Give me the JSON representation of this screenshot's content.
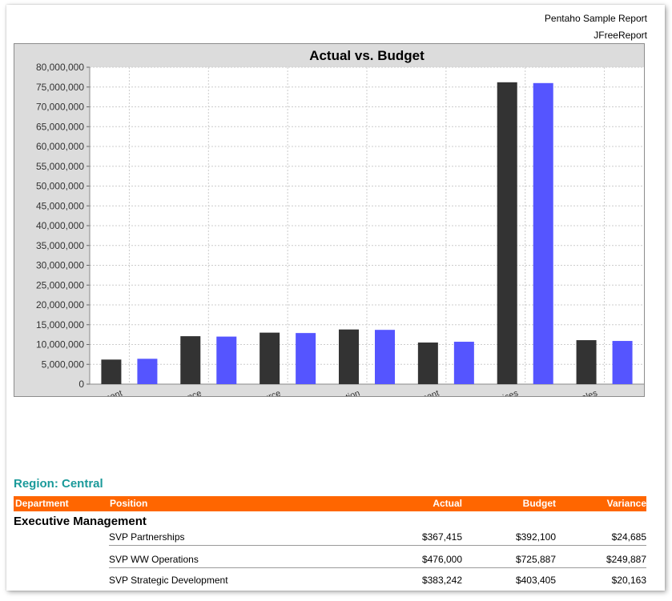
{
  "report": {
    "header_line1": "Pentaho Sample Report",
    "header_line2": "JFreeReport"
  },
  "chart_data": {
    "type": "bar",
    "title": "Actual vs. Budget",
    "xlabel": "",
    "ylabel": "",
    "ylim": [
      0,
      80000000
    ],
    "y_tick_step": 5000000,
    "y_tick_labels": [
      "0",
      "5,000,000",
      "10,000,000",
      "15,000,000",
      "20,000,000",
      "25,000,000",
      "30,000,000",
      "35,000,000",
      "40,000,000",
      "45,000,000",
      "50,000,000",
      "55,000,000",
      "60,000,000",
      "65,000,000",
      "70,000,000",
      "75,000,000",
      "80,000,000"
    ],
    "categories": [
      "ment",
      "nce",
      "urce",
      "ation",
      "ment",
      "ices",
      "ales"
    ],
    "grid": true,
    "series": [
      {
        "values": [
          6200000,
          12100000,
          13000000,
          13800000,
          10500000,
          76200000,
          11100000
        ],
        "color": "#333333"
      },
      {
        "values": [
          6400000,
          12000000,
          12900000,
          13700000,
          10700000,
          76000000,
          10900000
        ],
        "color": "#5555ff"
      }
    ]
  },
  "region": {
    "label": "Region: Central"
  },
  "table": {
    "headers": {
      "department": "Department",
      "position": "Position",
      "actual": "Actual",
      "budget": "Budget",
      "variance": "Variance"
    },
    "group_title": "Executive Management",
    "rows": [
      {
        "position": "SVP Partnerships",
        "actual": "$367,415",
        "budget": "$392,100",
        "variance": "$24,685"
      },
      {
        "position": "SVP WW Operations",
        "actual": "$476,000",
        "budget": "$725,887",
        "variance": "$249,887"
      },
      {
        "position": "SVP Strategic Development",
        "actual": "$383,242",
        "budget": "$403,405",
        "variance": "$20,163"
      }
    ]
  },
  "colors": {
    "table_header_bg": "#ff6600",
    "region_text": "#1a9a9a"
  }
}
